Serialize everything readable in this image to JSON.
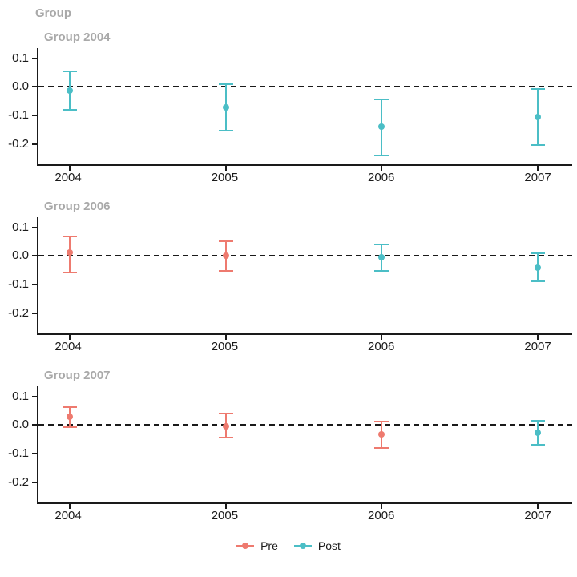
{
  "title": "Group",
  "colors": {
    "pre": "#EE7A6F",
    "post": "#4BBEC6",
    "title_gray": "#A9A9A9",
    "axis_black": "#1A1A1A"
  },
  "chart_data": {
    "type": "scatter",
    "subtype": "pointrange-errorbar-facets",
    "title": "Group",
    "legend": [
      {
        "label": "Pre",
        "phase": "Pre"
      },
      {
        "label": "Post",
        "phase": "Post"
      }
    ],
    "legend_position": "bottom-center",
    "x_ticks": [
      "2004",
      "2005",
      "2006",
      "2007"
    ],
    "x_tick_years": [
      2004,
      2005,
      2006,
      2007
    ],
    "xlim": [
      2003.8,
      2007.22
    ],
    "y_ticks": [
      {
        "label": "0.1",
        "value": 0.1
      },
      {
        "label": "0.0",
        "value": 0.0
      },
      {
        "label": "-0.1",
        "value": -0.1
      },
      {
        "label": "-0.2",
        "value": -0.2
      }
    ],
    "ylim": [
      -0.27,
      0.135
    ],
    "zero_reference_line": 0.0,
    "grid": "off",
    "facets": [
      {
        "title": "Group 2004",
        "points": [
          {
            "year": 2004,
            "phase": "Post",
            "estimate": -0.013,
            "ci_low": -0.083,
            "ci_high": 0.058
          },
          {
            "year": 2005,
            "phase": "Post",
            "estimate": -0.073,
            "ci_low": -0.155,
            "ci_high": 0.012
          },
          {
            "year": 2006,
            "phase": "Post",
            "estimate": -0.14,
            "ci_low": -0.243,
            "ci_high": -0.042
          },
          {
            "year": 2007,
            "phase": "Post",
            "estimate": -0.105,
            "ci_low": -0.205,
            "ci_high": -0.006
          }
        ]
      },
      {
        "title": "Group 2006",
        "points": [
          {
            "year": 2004,
            "phase": "Pre",
            "estimate": 0.011,
            "ci_low": -0.061,
            "ci_high": 0.071
          },
          {
            "year": 2005,
            "phase": "Pre",
            "estimate": 0.0,
            "ci_low": -0.055,
            "ci_high": 0.053
          },
          {
            "year": 2006,
            "phase": "Post",
            "estimate": -0.005,
            "ci_low": -0.054,
            "ci_high": 0.042
          },
          {
            "year": 2007,
            "phase": "Post",
            "estimate": -0.042,
            "ci_low": -0.092,
            "ci_high": 0.011
          }
        ]
      },
      {
        "title": "Group 2007",
        "points": [
          {
            "year": 2004,
            "phase": "Pre",
            "estimate": 0.029,
            "ci_low": -0.011,
            "ci_high": 0.066
          },
          {
            "year": 2005,
            "phase": "Pre",
            "estimate": -0.004,
            "ci_low": -0.047,
            "ci_high": 0.042
          },
          {
            "year": 2006,
            "phase": "Pre",
            "estimate": -0.034,
            "ci_low": -0.082,
            "ci_high": 0.016
          },
          {
            "year": 2007,
            "phase": "Post",
            "estimate": -0.028,
            "ci_low": -0.071,
            "ci_high": 0.018
          }
        ]
      }
    ]
  }
}
